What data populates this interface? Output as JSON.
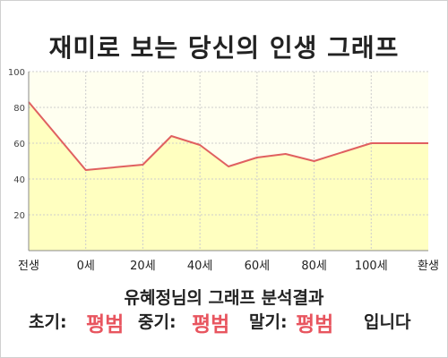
{
  "title": "재미로 보는 당신의 인생 그래프",
  "result_heading": "유혜정님의 그래프 분석결과",
  "verdict": {
    "early_label": "초기:",
    "early_value": "평범",
    "mid_label": "중기:",
    "mid_value": "평범",
    "late_label": "말기:",
    "late_value": "평범",
    "suffix": "입니다"
  },
  "colors": {
    "line": "#e06060",
    "fill": "#ffffc0",
    "plot_bg": "#fffff0",
    "grid": "#cccccc",
    "verdict_value": "#e8555f"
  },
  "chart_data": {
    "type": "area",
    "title": "재미로 보는 당신의 인생 그래프",
    "xlabel": "",
    "ylabel": "",
    "ylim": [
      0,
      100
    ],
    "yticks": [
      20,
      40,
      60,
      80,
      100
    ],
    "x_tick_labels": [
      "전생",
      "0세",
      "20세",
      "40세",
      "60세",
      "80세",
      "100세",
      "환생"
    ],
    "x_tick_positions": [
      -20,
      0,
      20,
      40,
      60,
      80,
      100,
      120
    ],
    "xlim": [
      -20,
      120
    ],
    "grid": true,
    "series": [
      {
        "x": [
          -20,
          0,
          20,
          30,
          40,
          50,
          60,
          70,
          80,
          90,
          100,
          110,
          120
        ],
        "values": [
          83,
          45,
          48,
          64,
          59,
          47,
          52,
          54,
          50,
          55,
          60,
          60,
          60
        ]
      }
    ]
  }
}
